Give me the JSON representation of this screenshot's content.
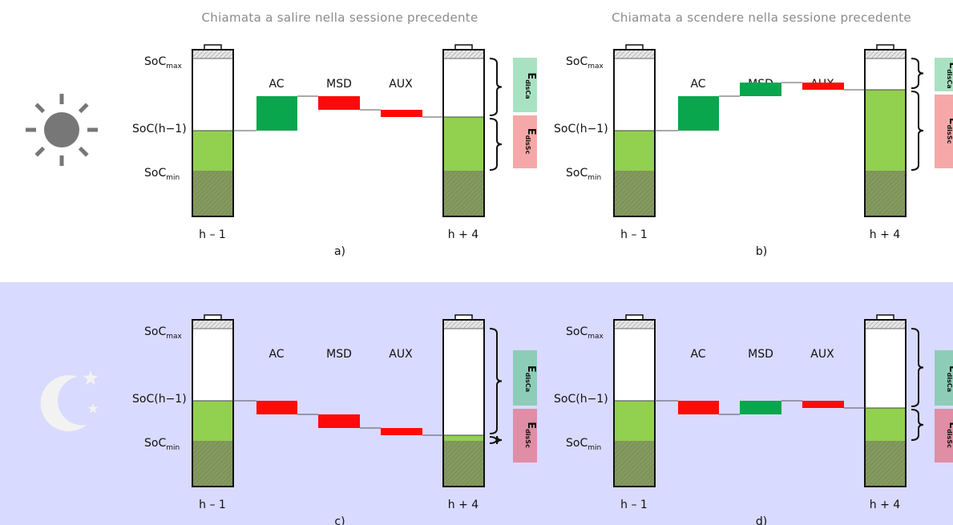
{
  "headers": {
    "top_left": "Chiamata a salire nella sessione precedente",
    "top_right": "Chiamata a scendere nella sessione precedente"
  },
  "soc_labels": {
    "max_base": "SoC",
    "max_sub": "max",
    "mid": "SoC(h−1)",
    "min_base": "SoC",
    "min_sub": "min"
  },
  "time_labels": {
    "before": "h – 1",
    "after": "h + 4"
  },
  "services": [
    "AC",
    "MSD",
    "AUX"
  ],
  "energy_tags": {
    "ca_base": "E",
    "ca_sub": "disCa",
    "sc_base": "E",
    "sc_sub": "disSc"
  },
  "icons": {
    "day": "sun-icon",
    "night": "moon-stars-icon"
  },
  "colors": {
    "up": "#0aa64d",
    "down": "#ff0a0a",
    "charge": "#92d050",
    "reserve": "#849a5e",
    "tag_ca_day": "#a9e2c2",
    "tag_sc_day": "#f6a8a8",
    "tag_ca_night": "#8dcdb8",
    "tag_sc_night": "#e08da6",
    "night_bg": "#d8daff",
    "icon_day": "#777777",
    "icon_night": "#f2f2f2"
  },
  "panels": [
    {
      "caption": "a)",
      "bars": [
        {
          "dir": "up"
        },
        {
          "dir": "down"
        },
        {
          "dir": "down"
        }
      ]
    },
    {
      "caption": "b)",
      "bars": [
        {
          "dir": "up"
        },
        {
          "dir": "up"
        },
        {
          "dir": "down"
        }
      ]
    },
    {
      "caption": "c)",
      "bars": [
        {
          "dir": "down"
        },
        {
          "dir": "down"
        },
        {
          "dir": "down"
        }
      ]
    },
    {
      "caption": "d)",
      "bars": [
        {
          "dir": "down"
        },
        {
          "dir": "up"
        },
        {
          "dir": "down"
        }
      ]
    }
  ]
}
